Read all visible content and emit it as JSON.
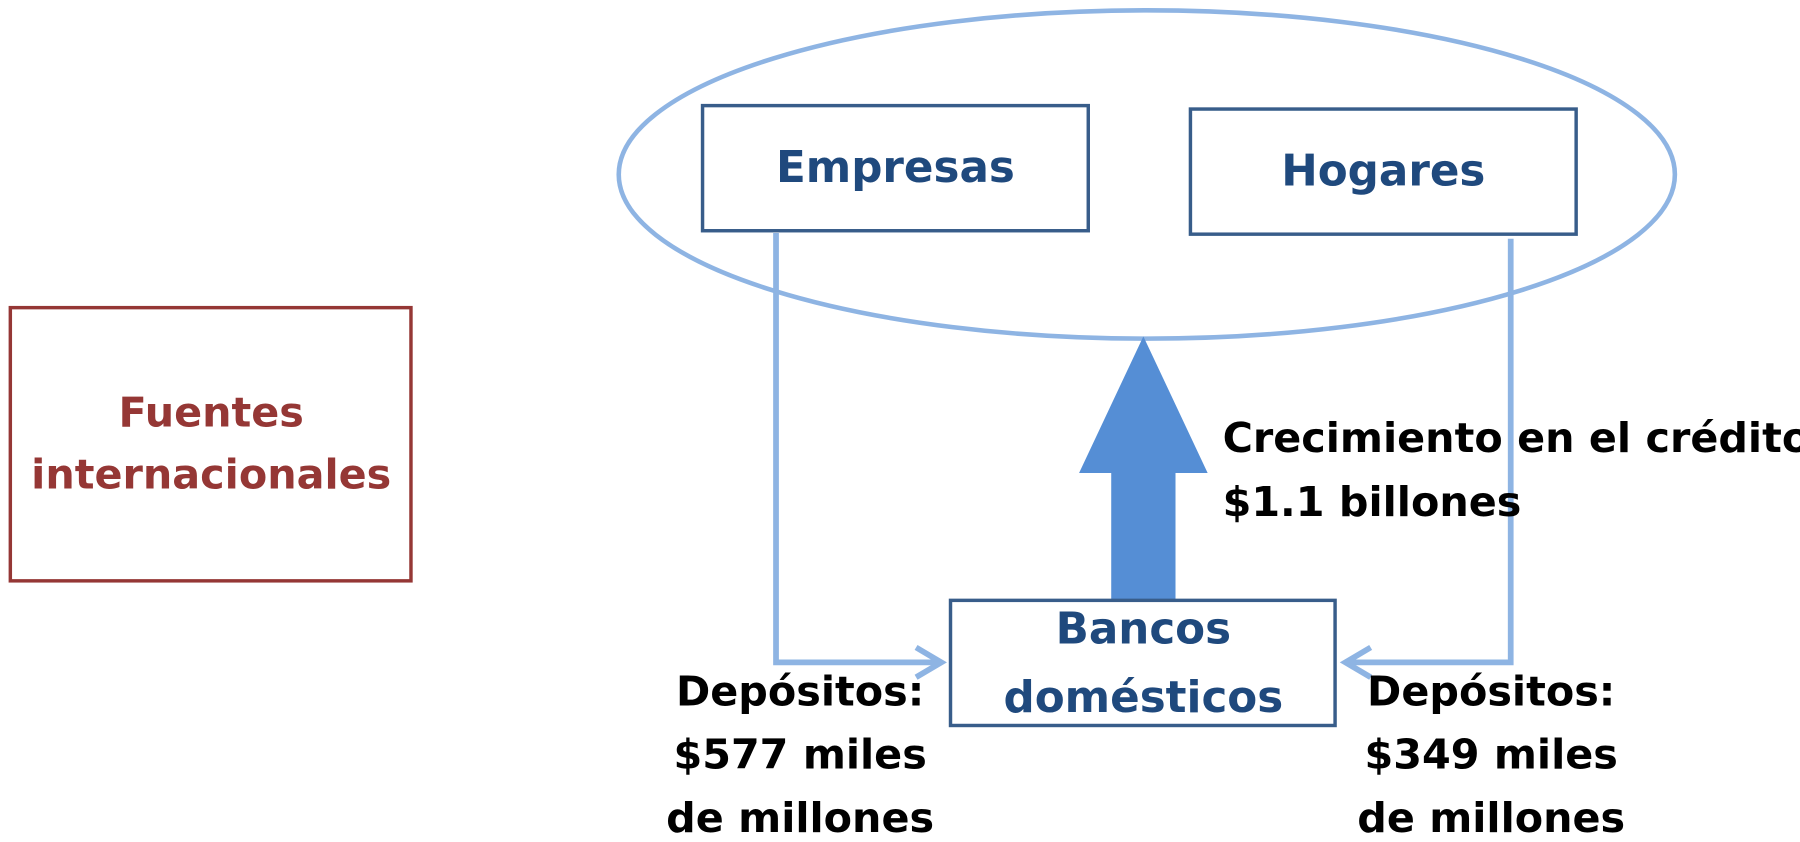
{
  "sources": {
    "lines": [
      "Fuentes",
      "internacionales"
    ]
  },
  "nodes": [
    {
      "label": "Empresas"
    },
    {
      "label": "Hogares"
    },
    {
      "lines": [
        "Bancos",
        "domésticos"
      ]
    }
  ],
  "credit": {
    "lines": [
      "Crecimiento en el crédito:",
      "$1.1 billones"
    ]
  },
  "deposits": [
    {
      "lines": [
        "Depósitos:",
        "$577 miles",
        "de millones"
      ]
    },
    {
      "lines": [
        "Depósitos:",
        "$349 miles",
        "de millones"
      ]
    }
  ]
}
